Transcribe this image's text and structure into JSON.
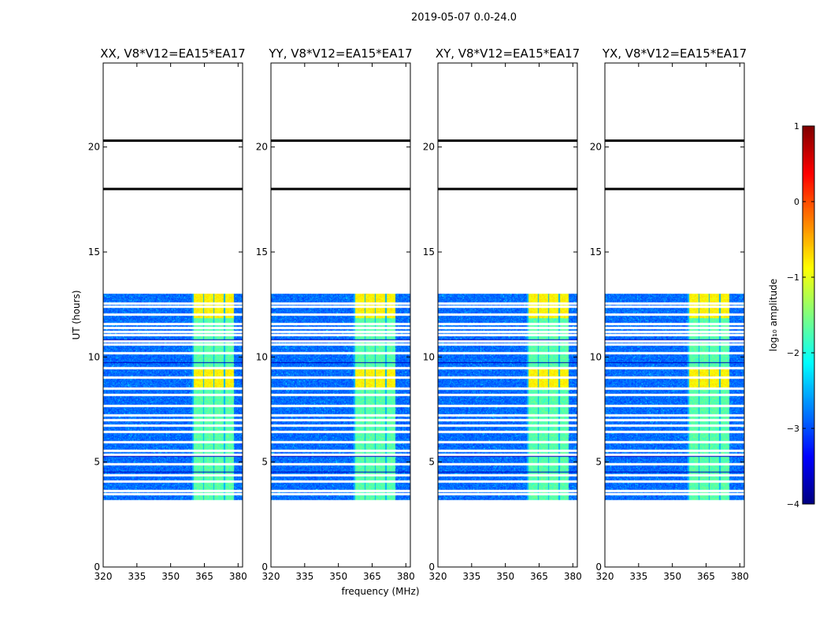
{
  "chart_data": [
    {
      "type": "heatmap",
      "title": "XX, V8*V12=EA15*EA17",
      "xlabel": "",
      "ylabel": "UT (hours)",
      "xlim": [
        320,
        382
      ],
      "ylim": [
        0,
        24
      ],
      "xticks": [
        320,
        335,
        350,
        365,
        380
      ],
      "yticks": [
        0,
        5,
        10,
        15,
        20
      ]
    },
    {
      "type": "heatmap",
      "title": "YY, V8*V12=EA15*EA17",
      "xlabel": "frequency (MHz)",
      "ylabel": "",
      "xlim": [
        320,
        382
      ],
      "ylim": [
        0,
        24
      ],
      "xticks": [
        320,
        335,
        350,
        365,
        380
      ],
      "yticks": [
        0,
        5,
        10,
        15,
        20
      ]
    },
    {
      "type": "heatmap",
      "title": "XY, V8*V12=EA15*EA17",
      "xlabel": "",
      "ylabel": "",
      "xlim": [
        320,
        382
      ],
      "ylim": [
        0,
        24
      ],
      "xticks": [
        320,
        335,
        350,
        365,
        380
      ],
      "yticks": [
        0,
        5,
        10,
        15,
        20
      ]
    },
    {
      "type": "heatmap",
      "title": "YX, V8*V12=EA15*EA17",
      "xlabel": "",
      "ylabel": "",
      "xlim": [
        320,
        382
      ],
      "ylim": [
        0,
        24
      ],
      "xticks": [
        320,
        335,
        350,
        365,
        380
      ],
      "yticks": [
        0,
        5,
        10,
        15,
        20
      ]
    }
  ],
  "figure": {
    "suptitle": "2019-05-07 0.0-24.0"
  },
  "data_extent": {
    "freq_range_mhz": [
      320,
      382
    ],
    "time_range_hours": [
      3.2,
      13.0
    ],
    "rfi_band_mhz": [
      359.5,
      378
    ],
    "rfi_band_strong_hours": [
      [
        8.6,
        9.4
      ],
      [
        11.9,
        13.0
      ]
    ],
    "blank_rows_hours": [
      3.5,
      3.62,
      4.1,
      4.4,
      4.9,
      5.35,
      5.55,
      5.95,
      6.45,
      6.75,
      7.0,
      7.25,
      7.7,
      8.2,
      8.5,
      9.05,
      9.5,
      10.2,
      10.6,
      10.75,
      11.05,
      11.2,
      11.4,
      11.58,
      12.05,
      12.42,
      12.55
    ],
    "dark_rows_hours": [
      4.55,
      5.3,
      9.75,
      10.85
    ],
    "flag_lines_hours": [
      18.0,
      20.3
    ]
  },
  "colorbar": {
    "label": "log₁₀ amplitude",
    "min": -4,
    "max": 1,
    "ticks": [
      1,
      0,
      -1,
      -2,
      -3,
      -4
    ],
    "colormap": "jet"
  }
}
